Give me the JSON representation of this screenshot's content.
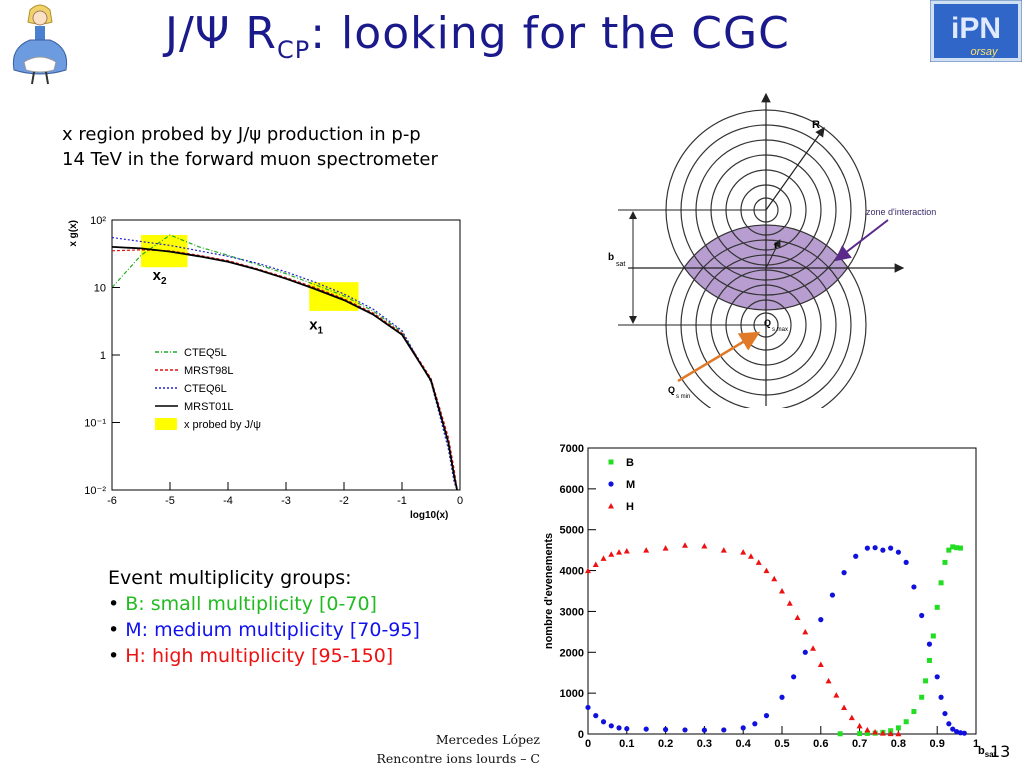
{
  "slide": {
    "title_main": "J/Ψ R",
    "title_sub": "CP",
    "title_tail": ": looking for the CGC",
    "note_line1": "x region probed by J/ψ production in p-p",
    "note_line2": "14 TeV in the forward muon spectrometer",
    "groups_heading": "Event multiplicity groups:",
    "groups": [
      {
        "bullet": "•",
        "text": "B: small multiplicity [0-70]",
        "color": "#22bb22"
      },
      {
        "bullet": "•",
        "text": "M: medium multiplicity [70-95]",
        "color": "#1111ee"
      },
      {
        "bullet": "•",
        "text": "H: high multiplicity [95-150]",
        "color": "#ee1111"
      }
    ],
    "footer_line1": "Mercedes López",
    "footer_line2": "Rencontre ions lourds – C",
    "page_number": "13",
    "logo_right_text": "iPN",
    "logo_right_sub": "orsay"
  },
  "diagram": {
    "label_R": "R",
    "label_zone": "zone d'interaction",
    "label_r": "r",
    "label_bsat": "b",
    "label_bsat_sub": "sat",
    "label_qmax": "Q",
    "label_qmax_sub": "s max",
    "label_qmin": "Q",
    "label_qmin_sub": "s min",
    "overlap_color": "#b89ed0",
    "arrow_color": "#e07a28"
  },
  "chart_data": [
    {
      "type": "line",
      "xlabel": "log10(x)",
      "ylabel": "x g(x)",
      "log_y": true,
      "xlim": [
        -6,
        0
      ],
      "ylim": [
        0.01,
        100
      ],
      "x_ticks": [
        "-6",
        "-5",
        "-4",
        "-3",
        "-2",
        "-1",
        "0"
      ],
      "y_ticks": [
        "10²",
        "10",
        "1",
        "10⁻¹",
        "10⁻²"
      ],
      "legend_position": "center-left",
      "annotations": [
        {
          "text": "x2",
          "label": "x",
          "sub": "2"
        },
        {
          "text": "x1",
          "label": "x",
          "sub": "1"
        }
      ],
      "series": [
        {
          "name": "CTEQ5L",
          "color": "#22aa22",
          "dash": "4,2,1,2",
          "x": [
            -6,
            -5.5,
            -5,
            -4.5,
            -4,
            -3.5,
            -3,
            -2.5,
            -2,
            -1.5,
            -1,
            -0.5,
            -0.2,
            -0.1,
            -0.05
          ],
          "y": [
            10,
            30,
            60,
            40,
            30,
            22,
            16,
            11,
            7.5,
            4.5,
            2.2,
            0.4,
            0.05,
            0.015,
            0.01
          ]
        },
        {
          "name": "MRST98L",
          "color": "#dd1111",
          "dash": "3,2",
          "x": [
            -6,
            -5.5,
            -5,
            -4.5,
            -4,
            -3.5,
            -3,
            -2.5,
            -2,
            -1.5,
            -1,
            -0.5,
            -0.2,
            -0.1,
            -0.05
          ],
          "y": [
            35,
            36,
            35,
            30,
            25,
            19,
            14,
            10,
            6.8,
            4.2,
            2.1,
            0.45,
            0.06,
            0.02,
            0.01
          ]
        },
        {
          "name": "CTEQ6L",
          "color": "#2222cc",
          "dash": "2,2",
          "x": [
            -6,
            -5.5,
            -5,
            -4.5,
            -4,
            -3.5,
            -3,
            -2.5,
            -2,
            -1.5,
            -1,
            -0.5,
            -0.2,
            -0.1,
            -0.05
          ],
          "y": [
            55,
            48,
            42,
            35,
            29,
            23,
            17,
            12,
            8,
            4.8,
            2.3,
            0.4,
            0.04,
            0.013,
            0.01
          ]
        },
        {
          "name": "MRST01L",
          "color": "#000000",
          "dash": "",
          "x": [
            -6,
            -5.5,
            -5,
            -4.5,
            -4,
            -3.5,
            -3,
            -2.5,
            -2,
            -1.5,
            -1,
            -0.5,
            -0.2,
            -0.1,
            -0.05
          ],
          "y": [
            40,
            38,
            34,
            29,
            24,
            18.5,
            13.5,
            9.5,
            6.5,
            4,
            2,
            0.42,
            0.05,
            0.016,
            0.01
          ]
        }
      ],
      "legend_extra": "x probed by J/ψ",
      "highlight_color": "#ffff00",
      "highlights": [
        {
          "x": [
            -5.5,
            -4.7
          ],
          "y": [
            20,
            60
          ]
        },
        {
          "x": [
            -2.6,
            -1.75
          ],
          "y": [
            4.5,
            12
          ]
        }
      ]
    },
    {
      "type": "scatter",
      "xlabel": "b_sat",
      "ylabel": "nombre d'evenements",
      "xlim": [
        0,
        1
      ],
      "ylim": [
        0,
        7000
      ],
      "x_ticks": [
        "0",
        "0.1",
        "0.2",
        "0.3",
        "0.4",
        "0.5",
        "0.6",
        "0.7",
        "0.8",
        "0.9",
        "1"
      ],
      "y_ticks": [
        "0",
        "1000",
        "2000",
        "3000",
        "4000",
        "5000",
        "6000",
        "7000"
      ],
      "legend_position": "top-left",
      "series": [
        {
          "name": "B",
          "color": "#22dd22",
          "marker": "square",
          "x": [
            0.65,
            0.7,
            0.72,
            0.74,
            0.76,
            0.78,
            0.8,
            0.82,
            0.84,
            0.86,
            0.87,
            0.88,
            0.89,
            0.9,
            0.91,
            0.92,
            0.93,
            0.94,
            0.95,
            0.96
          ],
          "y": [
            5,
            10,
            15,
            20,
            40,
            80,
            150,
            300,
            550,
            900,
            1300,
            1800,
            2400,
            3100,
            3700,
            4200,
            4500,
            4580,
            4560,
            4550
          ]
        },
        {
          "name": "M",
          "color": "#1111dd",
          "marker": "circle",
          "x": [
            0,
            0.02,
            0.04,
            0.06,
            0.08,
            0.1,
            0.15,
            0.2,
            0.25,
            0.3,
            0.35,
            0.4,
            0.43,
            0.46,
            0.5,
            0.53,
            0.56,
            0.6,
            0.63,
            0.66,
            0.69,
            0.72,
            0.74,
            0.76,
            0.78,
            0.8,
            0.82,
            0.84,
            0.86,
            0.88,
            0.9,
            0.91,
            0.92,
            0.93,
            0.94,
            0.95,
            0.96,
            0.97
          ],
          "y": [
            650,
            450,
            300,
            200,
            150,
            130,
            120,
            110,
            100,
            95,
            100,
            150,
            250,
            450,
            900,
            1400,
            2000,
            2800,
            3400,
            3950,
            4350,
            4550,
            4560,
            4500,
            4550,
            4450,
            4200,
            3600,
            2900,
            2200,
            1400,
            900,
            500,
            250,
            120,
            60,
            30,
            20
          ]
        },
        {
          "name": "H",
          "color": "#ee1111",
          "marker": "triangle",
          "x": [
            0,
            0.02,
            0.04,
            0.06,
            0.08,
            0.1,
            0.15,
            0.2,
            0.25,
            0.3,
            0.35,
            0.4,
            0.42,
            0.44,
            0.46,
            0.48,
            0.5,
            0.52,
            0.54,
            0.56,
            0.58,
            0.6,
            0.62,
            0.64,
            0.66,
            0.68,
            0.7,
            0.72,
            0.74,
            0.76,
            0.78,
            0.8
          ],
          "y": [
            4000,
            4150,
            4300,
            4400,
            4450,
            4480,
            4500,
            4550,
            4620,
            4600,
            4500,
            4450,
            4350,
            4200,
            4000,
            3800,
            3500,
            3200,
            2850,
            2500,
            2100,
            1700,
            1300,
            950,
            650,
            400,
            200,
            100,
            50,
            20,
            10,
            5
          ]
        }
      ]
    }
  ]
}
